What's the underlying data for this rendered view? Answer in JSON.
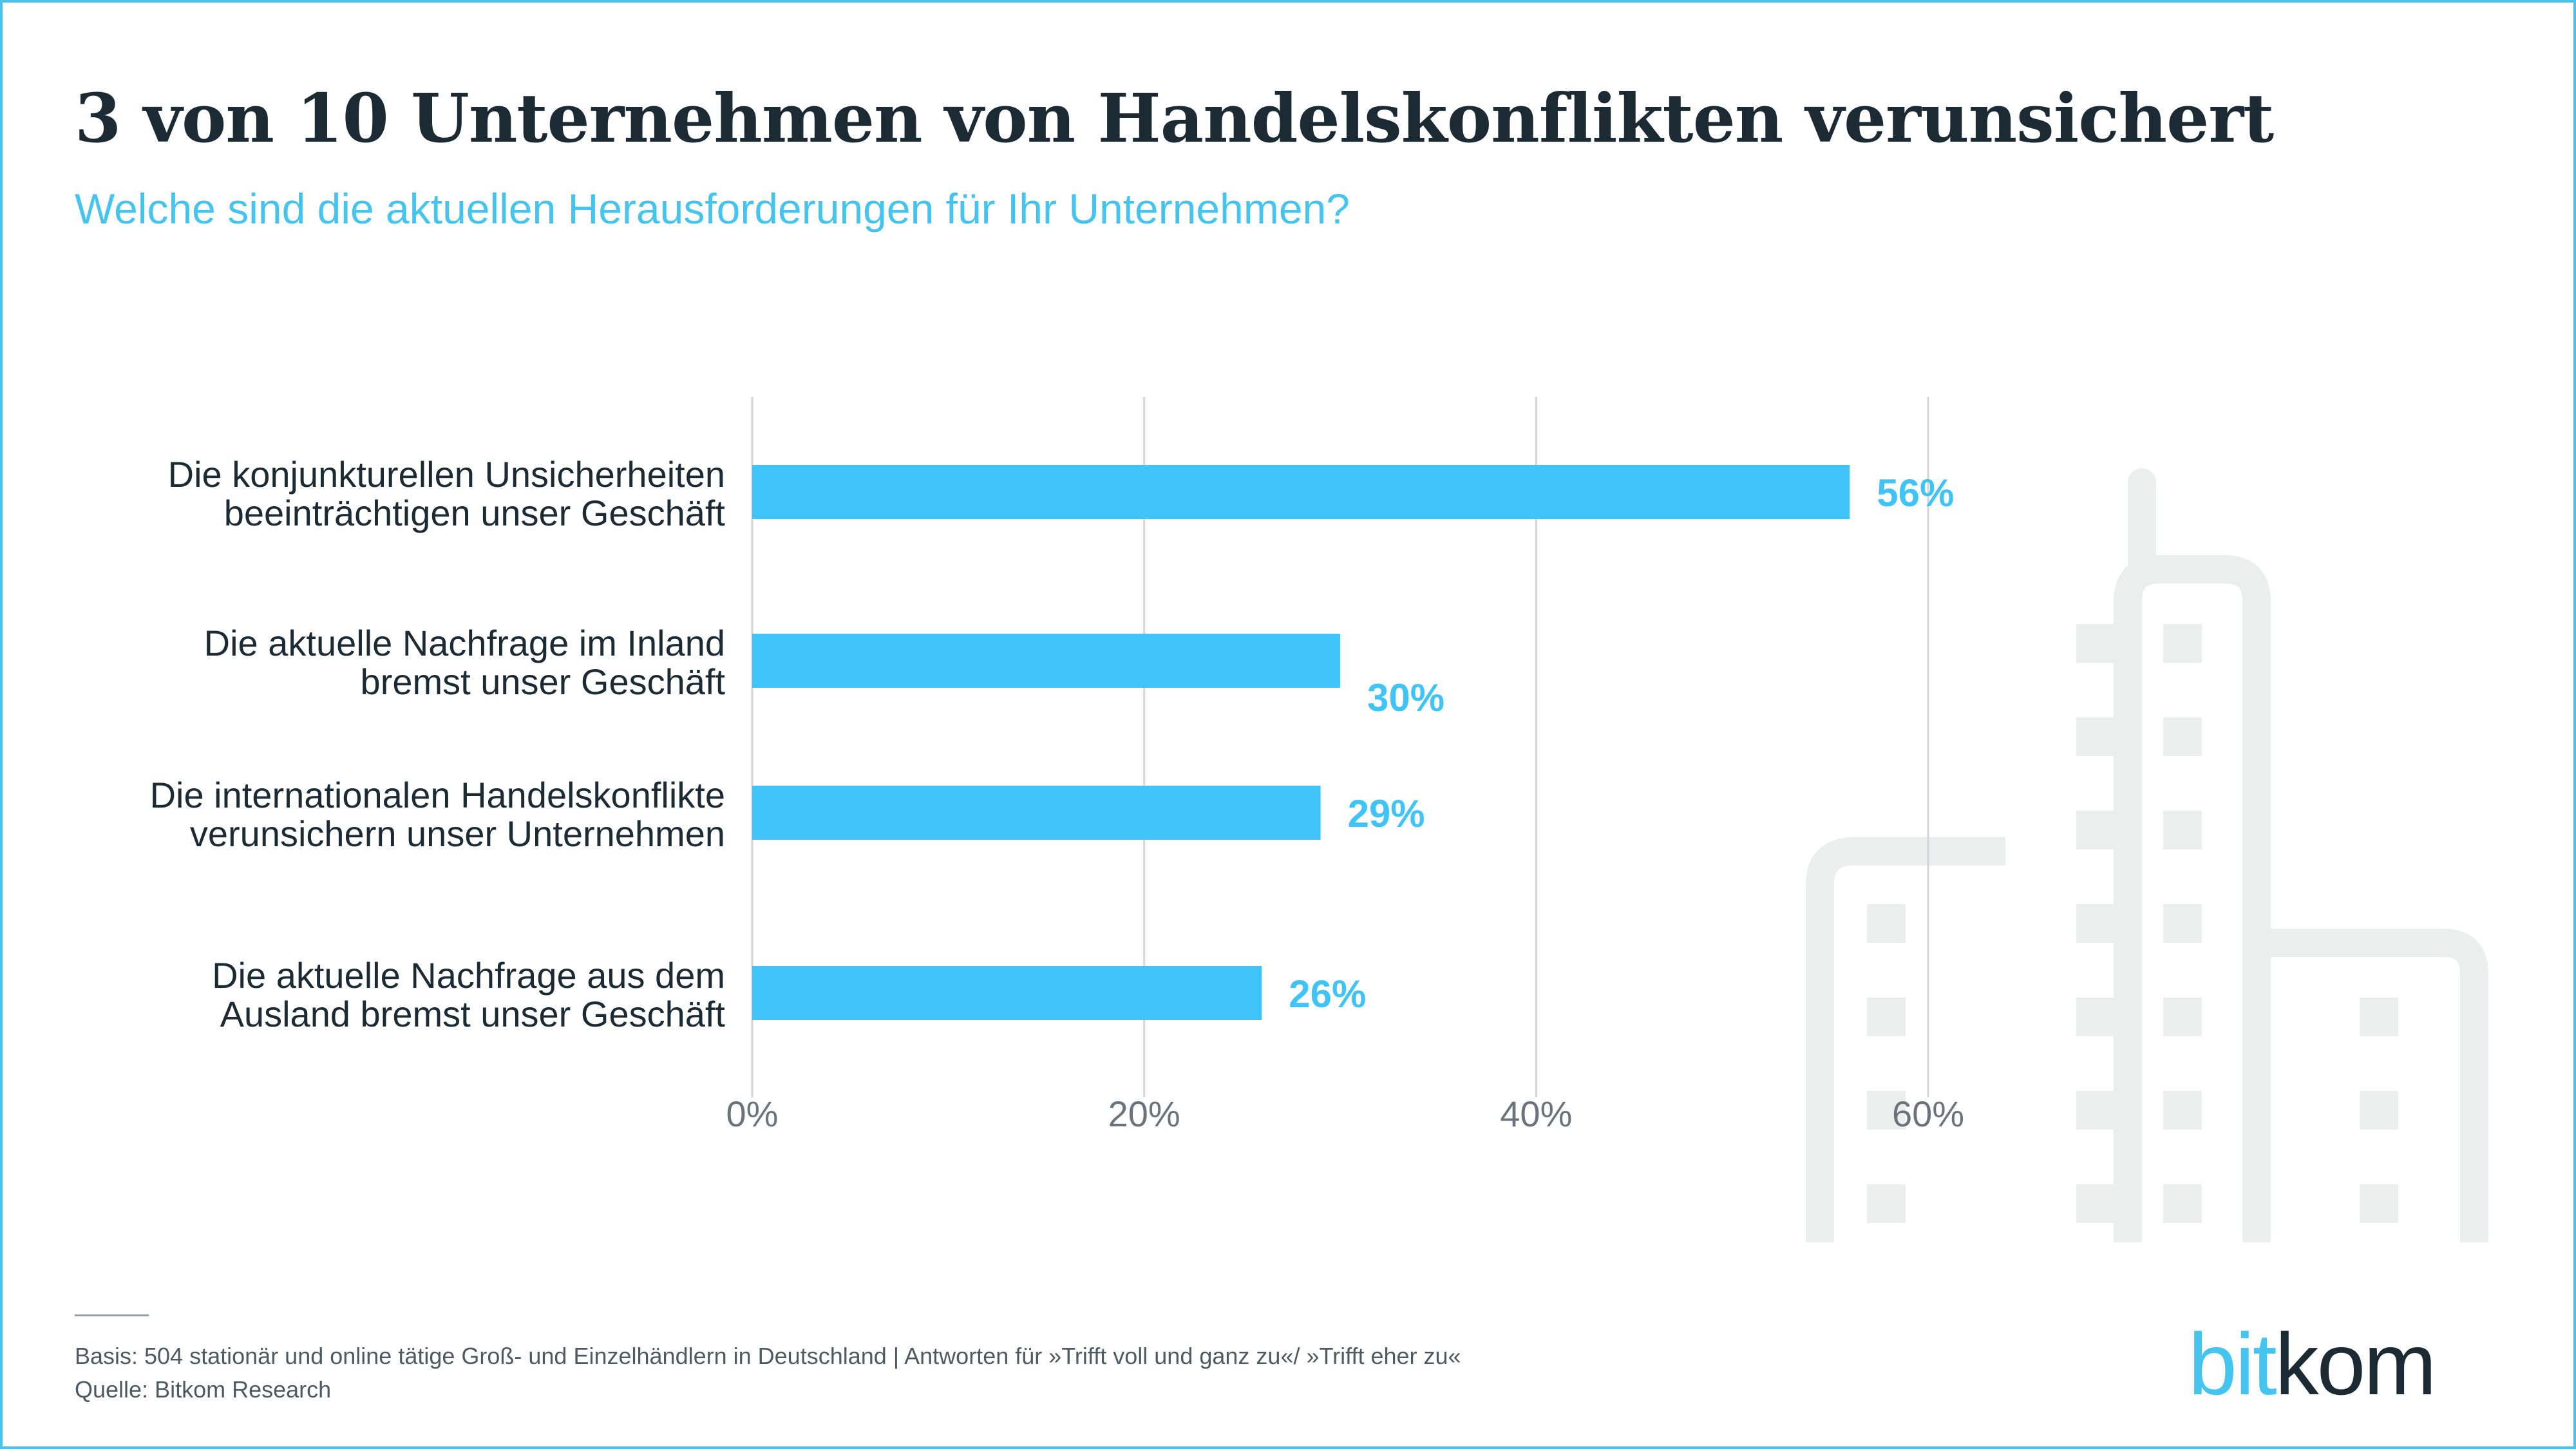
{
  "title": "3 von 10 Unternehmen von Handelskonflikten verunsichert",
  "subtitle": "Welche sind die aktuellen Herausforderungen für Ihr Unternehmen?",
  "colors": {
    "bar": "#40c4f8",
    "value_label": "#40c4f8",
    "axis_text": "#6b747a",
    "grid": "#d2d6d8",
    "title": "#1b2a33",
    "subtitle": "#45c4f0",
    "illustration": "#eceeee"
  },
  "chart_data": {
    "type": "bar",
    "orientation": "horizontal",
    "categories": [
      [
        "Die konjunkturellen Unsicherheiten",
        "beeinträchtigen unser Geschäft"
      ],
      [
        "Die aktuelle Nachfrage im Inland",
        "bremst unser Geschäft"
      ],
      [
        "Die internationalen Handelskonflikte",
        "verunsichern unser Unternehmen"
      ],
      [
        "Die aktuelle Nachfrage aus dem",
        "Ausland bremst unser Geschäft"
      ]
    ],
    "values": [
      56,
      30,
      29,
      26
    ],
    "value_labels": [
      "56%",
      "30%",
      "29%",
      "26%"
    ],
    "xlim": [
      0,
      60
    ],
    "xticks": [
      0,
      20,
      40,
      60
    ],
    "xtick_labels": [
      "0%",
      "20%",
      "40%",
      "60%"
    ],
    "grid": true
  },
  "illustration": {
    "icon": "buildings-icon"
  },
  "footer": {
    "basis": "Basis: 504 stationär und online tätige Groß- und Einzelhändlern in Deutschland | Antworten für »Trifft voll und ganz zu«/ »Trifft eher zu«",
    "source": "Quelle: Bitkom Research"
  },
  "logo": {
    "part1": "bit",
    "part2": "kom"
  }
}
